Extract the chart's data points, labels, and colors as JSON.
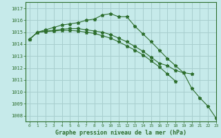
{
  "title": "Graphe pression niveau de la mer (hPa)",
  "background_color": "#c6eaea",
  "grid_color": "#a8cece",
  "line_color": "#2d6e2d",
  "xlim": [
    -0.5,
    23
  ],
  "ylim": [
    1007.5,
    1017.5
  ],
  "yticks": [
    1008,
    1009,
    1010,
    1011,
    1012,
    1013,
    1014,
    1015,
    1016,
    1017
  ],
  "xticks": [
    0,
    1,
    2,
    3,
    4,
    5,
    6,
    7,
    8,
    9,
    10,
    11,
    12,
    13,
    14,
    15,
    16,
    17,
    18,
    19,
    20,
    21,
    22,
    23
  ],
  "series": [
    [
      1014.4,
      1015.0,
      1015.2,
      1015.4,
      1015.6,
      1015.7,
      1015.8,
      1016.0,
      1016.1,
      1016.45,
      1016.55,
      1016.3,
      1016.3,
      1015.5,
      1014.85,
      1014.2,
      1013.5,
      1012.8,
      1012.2,
      1011.6,
      1010.3,
      1009.5,
      1008.8,
      1007.8
    ],
    [
      1014.4,
      1015.0,
      1015.1,
      1015.15,
      1015.25,
      1015.3,
      1015.3,
      1015.2,
      1015.1,
      1015.0,
      1014.8,
      1014.5,
      1014.2,
      1013.8,
      1013.4,
      1012.9,
      1012.4,
      1012.2,
      1011.8,
      1011.6,
      1011.5,
      null,
      null,
      null
    ],
    [
      1014.4,
      1015.0,
      1015.05,
      1015.1,
      1015.15,
      1015.15,
      1015.1,
      1015.0,
      1014.9,
      1014.7,
      1014.5,
      1014.2,
      1013.85,
      1013.5,
      1013.1,
      1012.6,
      1012.1,
      1011.5,
      1010.9,
      null,
      null,
      null,
      null,
      null
    ]
  ]
}
